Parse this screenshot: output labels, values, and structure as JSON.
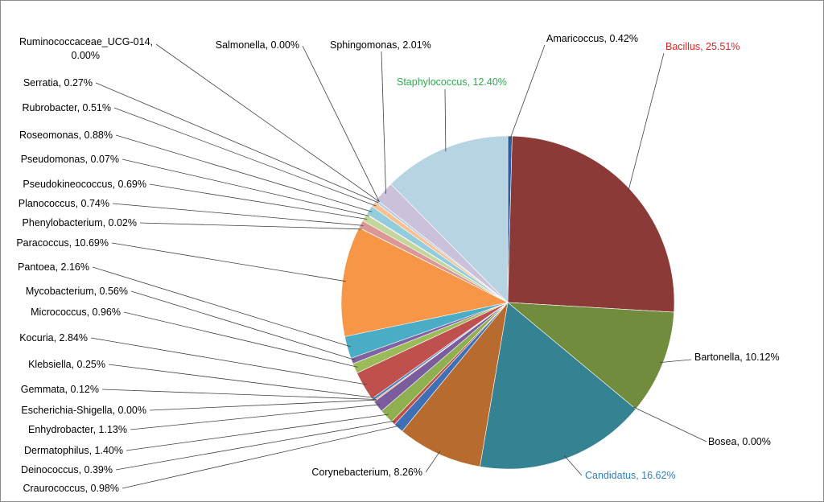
{
  "chart_data": {
    "type": "pie",
    "title": "",
    "slices": [
      {
        "label": "Amaricoccus",
        "value": 0.42,
        "display": "0.42%",
        "color": "#2e5ea0"
      },
      {
        "label": "Bacillus",
        "value": 25.51,
        "display": "25.51%",
        "color": "#8b3a37",
        "label_color": "#e32424"
      },
      {
        "label": "Bartonella",
        "value": 10.12,
        "display": "10.12%",
        "color": "#728c3e"
      },
      {
        "label": "Bosea",
        "value": 0.0,
        "display": "0.00%",
        "color": "#5f4a80"
      },
      {
        "label": "Candidatus",
        "value": 16.62,
        "display": "16.62%",
        "color": "#358293",
        "label_color": "#2f7fc0"
      },
      {
        "label": "Corynebacterium",
        "value": 8.26,
        "display": "8.26%",
        "color": "#b86b2e"
      },
      {
        "label": "Craurococcus",
        "value": 0.98,
        "display": "0.98%",
        "color": "#3f6fb4"
      },
      {
        "label": "Deinococcus",
        "value": 0.39,
        "display": "0.39%",
        "color": "#c04f4a"
      },
      {
        "label": "Dermatophilus",
        "value": 1.4,
        "display": "1.40%",
        "color": "#8fb04e"
      },
      {
        "label": "Enhydrobacter",
        "value": 1.13,
        "display": "1.13%",
        "color": "#7b5d9e"
      },
      {
        "label": "Escherichia-Shigella",
        "value": 0.0,
        "display": "0.00%",
        "color": "#43a6c0"
      },
      {
        "label": "Gemmata",
        "value": 0.12,
        "display": "0.12%",
        "color": "#f0914a"
      },
      {
        "label": "Klebsiella",
        "value": 0.25,
        "display": "0.25%",
        "color": "#4f81bd"
      },
      {
        "label": "Kocuria",
        "value": 2.84,
        "display": "2.84%",
        "color": "#c0504d"
      },
      {
        "label": "Micrococcus",
        "value": 0.96,
        "display": "0.96%",
        "color": "#9bbb59"
      },
      {
        "label": "Mycobacterium",
        "value": 0.56,
        "display": "0.56%",
        "color": "#8064a2"
      },
      {
        "label": "Pantoea",
        "value": 2.16,
        "display": "2.16%",
        "color": "#4bacc6"
      },
      {
        "label": "Paracoccus",
        "value": 10.69,
        "display": "10.69%",
        "color": "#f79646"
      },
      {
        "label": "Phenylobacterium",
        "value": 0.02,
        "display": "0.02%",
        "color": "#a9c6e8"
      },
      {
        "label": "Planococcus",
        "value": 0.74,
        "display": "0.74%",
        "color": "#dc9694"
      },
      {
        "label": "Pseudokineococcus",
        "value": 0.69,
        "display": "0.69%",
        "color": "#c3d69b"
      },
      {
        "label": "Pseudomonas",
        "value": 0.07,
        "display": "0.07%",
        "color": "#b3a2c7"
      },
      {
        "label": "Roseomonas",
        "value": 0.88,
        "display": "0.88%",
        "color": "#93cddd"
      },
      {
        "label": "Rubrobacter",
        "value": 0.51,
        "display": "0.51%",
        "color": "#fac090"
      },
      {
        "label": "Serratia",
        "value": 0.27,
        "display": "0.27%",
        "color": "#b9cde5"
      },
      {
        "label": "Ruminococcaceae_UCG-014",
        "value": 0.0,
        "display": "0.00%",
        "color": "#e6b9b8"
      },
      {
        "label": "Salmonella",
        "value": 0.0,
        "display": "0.00%",
        "color": "#d7e4bd"
      },
      {
        "label": "Sphingomonas",
        "value": 2.01,
        "display": "2.01%",
        "color": "#ccc1da"
      },
      {
        "label": "Staphylococcus",
        "value": 12.4,
        "display": "12.40%",
        "color": "#b7d4e2",
        "label_color": "#2daa4e"
      }
    ]
  }
}
